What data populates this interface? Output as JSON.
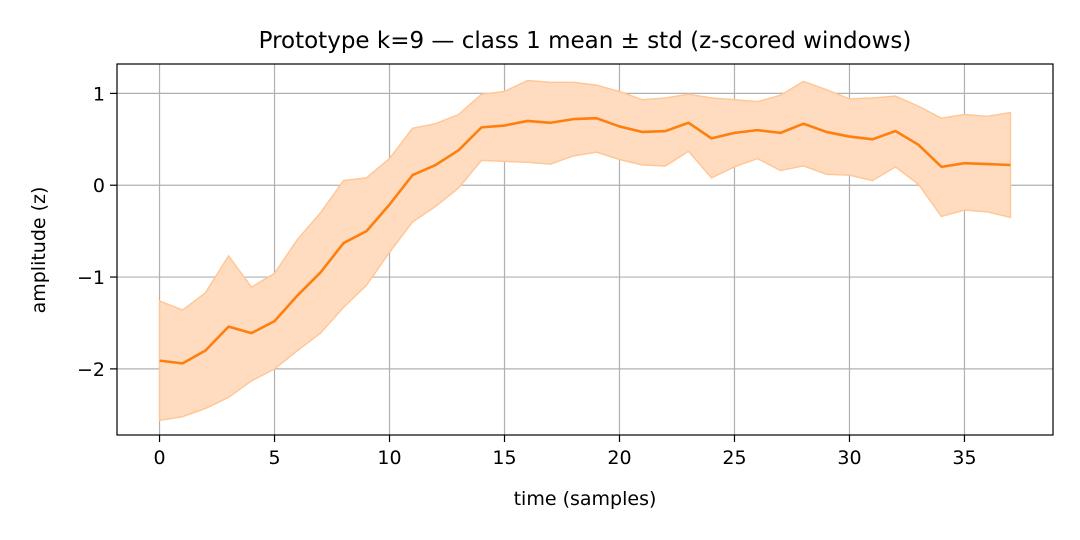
{
  "chart_data": {
    "type": "line",
    "title": "Prototype k=9 — class 1 mean ± std (z-scored windows)",
    "xlabel": "time (samples)",
    "ylabel": "amplitude (z)",
    "xlim": [
      -1.85,
      38.85
    ],
    "ylim": [
      -2.72,
      1.32
    ],
    "xticks": [
      0,
      5,
      10,
      15,
      20,
      25,
      30,
      35
    ],
    "xtick_labels": [
      "0",
      "5",
      "10",
      "15",
      "20",
      "25",
      "30",
      "35"
    ],
    "yticks": [
      -2,
      -1,
      0,
      1
    ],
    "ytick_labels": [
      "−2",
      "−1",
      "0",
      "1"
    ],
    "grid": true,
    "legend": "none",
    "colors": {
      "line": "#ff7f0e",
      "band": "#ffdcc0",
      "band_edge": "#ffc797"
    },
    "series": [
      {
        "x": [
          0,
          1,
          2,
          3,
          4,
          5,
          6,
          7,
          8,
          9,
          10,
          11,
          12,
          13,
          14,
          15,
          16,
          17,
          18,
          19,
          20,
          21,
          22,
          23,
          24,
          25,
          26,
          27,
          28,
          29,
          30,
          31,
          32,
          33,
          34,
          35,
          36,
          37
        ],
        "mean": [
          -1.91,
          -1.94,
          -1.8,
          -1.54,
          -1.61,
          -1.48,
          -1.2,
          -0.95,
          -0.63,
          -0.5,
          -0.21,
          0.11,
          0.22,
          0.38,
          0.63,
          0.65,
          0.7,
          0.68,
          0.72,
          0.73,
          0.64,
          0.58,
          0.59,
          0.68,
          0.51,
          0.57,
          0.6,
          0.57,
          0.67,
          0.58,
          0.53,
          0.5,
          0.59,
          0.44,
          0.2,
          0.24,
          0.23,
          0.22
        ],
        "upper": [
          -1.26,
          -1.36,
          -1.17,
          -0.77,
          -1.11,
          -0.96,
          -0.59,
          -0.3,
          0.05,
          0.08,
          0.29,
          0.62,
          0.67,
          0.77,
          0.99,
          1.02,
          1.14,
          1.12,
          1.12,
          1.09,
          1.02,
          0.93,
          0.95,
          0.99,
          0.95,
          0.93,
          0.91,
          0.98,
          1.13,
          1.04,
          0.94,
          0.95,
          0.97,
          0.86,
          0.73,
          0.77,
          0.75,
          0.79
        ],
        "lower": [
          -2.56,
          -2.52,
          -2.43,
          -2.31,
          -2.13,
          -2.0,
          -1.8,
          -1.61,
          -1.33,
          -1.09,
          -0.73,
          -0.4,
          -0.23,
          -0.03,
          0.27,
          0.26,
          0.25,
          0.23,
          0.32,
          0.36,
          0.28,
          0.22,
          0.21,
          0.37,
          0.08,
          0.2,
          0.29,
          0.16,
          0.21,
          0.12,
          0.11,
          0.05,
          0.2,
          0.01,
          -0.34,
          -0.27,
          -0.29,
          -0.35
        ]
      }
    ]
  }
}
